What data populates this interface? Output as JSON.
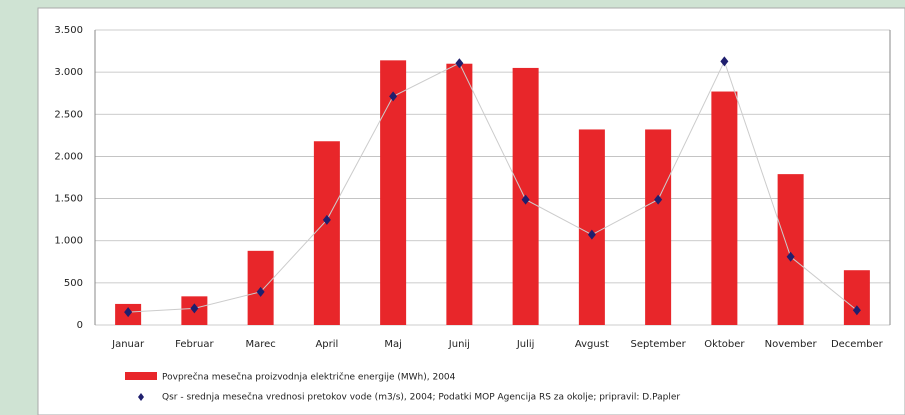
{
  "chart_data": {
    "type": "bar_line",
    "categories": [
      "Januar",
      "Februar",
      "Marec",
      "April",
      "Maj",
      "Junij",
      "Julij",
      "Avgust",
      "September",
      "Oktober",
      "November",
      "December"
    ],
    "series": [
      {
        "name": "Povprečna mesečna proizvodnja električne energije (MWh), 2004",
        "color": "#e8262a",
        "type": "bar",
        "values": [
          250,
          340,
          880,
          2180,
          3140,
          3100,
          3050,
          2320,
          2320,
          2770,
          1790,
          650
        ]
      },
      {
        "name": "Qsr - srednja mesečna vrednosi pretokov vode (m3/s), 2004; Podatki MOP Agencija RS za okolje; pripravil: D.Papler",
        "color": "#1f1f6e",
        "type": "line",
        "axis": "y2",
        "values": [
          0.7,
          0.9,
          1.8,
          5.7,
          12.4,
          14.2,
          6.8,
          4.9,
          6.8,
          14.3,
          3.7,
          0.8
        ]
      }
    ],
    "ylim": [
      0,
      3500
    ],
    "yticks": [
      0,
      500,
      {
        "value": 1000,
        "label": "1.000"
      },
      {
        "value": 1500,
        "label": "1.500"
      },
      {
        "value": 2000,
        "label": "2.000"
      },
      {
        "value": 2500,
        "label": "2.500"
      },
      {
        "value": 3000,
        "label": "3.000"
      },
      {
        "value": 3500,
        "label": "3.500"
      }
    ],
    "y2lim": [
      0,
      16
    ],
    "grid": true
  }
}
